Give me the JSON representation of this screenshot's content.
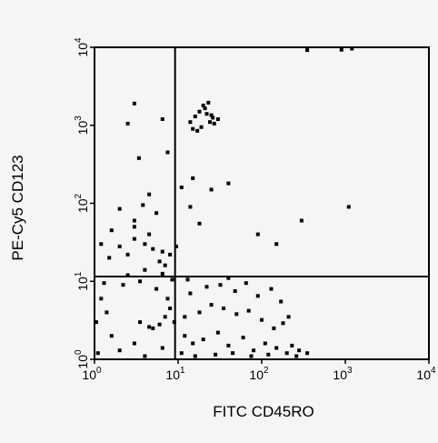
{
  "chart_data": {
    "type": "scatter",
    "title": "",
    "xlabel": "FITC CD45RO",
    "ylabel": "PE-Cy5 CD123",
    "x_scale": "log",
    "y_scale": "log",
    "xlim": [
      1,
      10000
    ],
    "ylim": [
      1,
      10000
    ],
    "x_ticks": [
      {
        "base": "10",
        "exp": "0"
      },
      {
        "base": "10",
        "exp": "1"
      },
      {
        "base": "10",
        "exp": "2"
      },
      {
        "base": "10",
        "exp": "3"
      },
      {
        "base": "10",
        "exp": "4"
      }
    ],
    "y_ticks": [
      {
        "base": "10",
        "exp": "0"
      },
      {
        "base": "10",
        "exp": "1"
      },
      {
        "base": "10",
        "exp": "2"
      },
      {
        "base": "10",
        "exp": "3"
      },
      {
        "base": "10",
        "exp": "4"
      }
    ],
    "quadrant_gates": {
      "x": 9.2,
      "y": 11.5
    },
    "grid": false,
    "legend": "none",
    "series": [
      {
        "style": "contour",
        "color": "#000000",
        "points": [
          [
            4.5,
            2.6
          ],
          [
            5.0,
            2.5
          ],
          [
            6.0,
            2.8
          ],
          [
            7.0,
            3.5
          ],
          [
            3.5,
            3.0
          ],
          [
            3.0,
            1.6
          ],
          [
            2.0,
            1.3
          ],
          [
            1.6,
            2.0
          ],
          [
            1.4,
            4.0
          ],
          [
            1.2,
            6.0
          ],
          [
            2.2,
            9.0
          ],
          [
            3.5,
            10.0
          ],
          [
            5.5,
            8.0
          ],
          [
            7.5,
            6.0
          ],
          [
            8.0,
            4.5
          ],
          [
            6.5,
            1.4
          ],
          [
            4.0,
            1.1
          ],
          [
            1.1,
            1.2
          ],
          [
            1.3,
            9.5
          ],
          [
            2.5,
            12.0
          ],
          [
            4.0,
            14.0
          ],
          [
            6.5,
            12.5
          ],
          [
            8.5,
            10.5
          ],
          [
            9.0,
            3.0
          ],
          [
            1.05,
            3.0
          ],
          [
            1.5,
            20
          ],
          [
            2.0,
            28
          ],
          [
            3.0,
            35
          ],
          [
            4.0,
            30
          ],
          [
            5.0,
            26
          ],
          [
            6.5,
            24
          ],
          [
            8.0,
            22
          ],
          [
            9.5,
            28
          ],
          [
            2.5,
            22
          ],
          [
            4.5,
            40
          ],
          [
            6.0,
            18
          ],
          [
            7.0,
            16
          ],
          [
            1.2,
            30
          ],
          [
            3.0,
            50
          ],
          [
            1.6,
            45
          ],
          [
            12,
            2.0
          ],
          [
            15,
            1.6
          ],
          [
            20,
            1.8
          ],
          [
            30,
            2.2
          ],
          [
            40,
            1.5
          ],
          [
            60,
            1.9
          ],
          [
            80,
            1.3
          ],
          [
            110,
            1.6
          ],
          [
            150,
            1.4
          ],
          [
            200,
            1.2
          ],
          [
            12,
            3.5
          ],
          [
            18,
            4.0
          ],
          [
            25,
            5.0
          ],
          [
            35,
            4.5
          ],
          [
            50,
            3.8
          ],
          [
            70,
            4.2
          ],
          [
            100,
            3.2
          ],
          [
            140,
            2.5
          ],
          [
            180,
            2.9
          ],
          [
            230,
            1.5
          ],
          [
            14,
            7.0
          ],
          [
            22,
            8.5
          ],
          [
            32,
            9.0
          ],
          [
            48,
            7.5
          ],
          [
            65,
            9.5
          ],
          [
            90,
            6.5
          ],
          [
            130,
            8.0
          ],
          [
            170,
            5.5
          ],
          [
            210,
            3.5
          ],
          [
            280,
            1.3
          ],
          [
            11,
            1.2
          ],
          [
            16,
            1.1
          ],
          [
            28,
            1.15
          ],
          [
            45,
            1.2
          ],
          [
            75,
            1.1
          ],
          [
            120,
            1.15
          ],
          [
            260,
            1.1
          ],
          [
            350,
            1.2
          ],
          [
            13,
            10.5
          ],
          [
            40,
            11.0
          ],
          [
            14,
            1100
          ],
          [
            16,
            1300
          ],
          [
            18,
            1500
          ],
          [
            20,
            1800
          ],
          [
            22,
            1400
          ],
          [
            24,
            1100
          ],
          [
            26,
            1250
          ],
          [
            19,
            950
          ],
          [
            15,
            900
          ],
          [
            21,
            1650
          ],
          [
            23,
            1950
          ],
          [
            27,
            1050
          ],
          [
            17,
            850
          ],
          [
            25,
            1350
          ],
          [
            30,
            1200
          ],
          [
            2.5,
            1050
          ],
          [
            3.4,
            380
          ],
          [
            4.5,
            130
          ],
          [
            3.8,
            95
          ],
          [
            2.0,
            85
          ],
          [
            3.0,
            60
          ],
          [
            5.5,
            75
          ],
          [
            6.5,
            1200
          ],
          [
            7.5,
            450
          ],
          [
            11,
            160
          ],
          [
            14,
            90
          ],
          [
            15,
            210
          ],
          [
            18,
            55
          ],
          [
            25,
            150
          ],
          [
            40,
            180
          ],
          [
            90,
            40
          ],
          [
            150,
            30
          ],
          [
            300,
            60
          ],
          [
            1100,
            90
          ],
          [
            3.0,
            1900
          ],
          [
            350,
            9200
          ],
          [
            900,
            9300
          ],
          [
            1200,
            9600
          ]
        ]
      }
    ]
  }
}
